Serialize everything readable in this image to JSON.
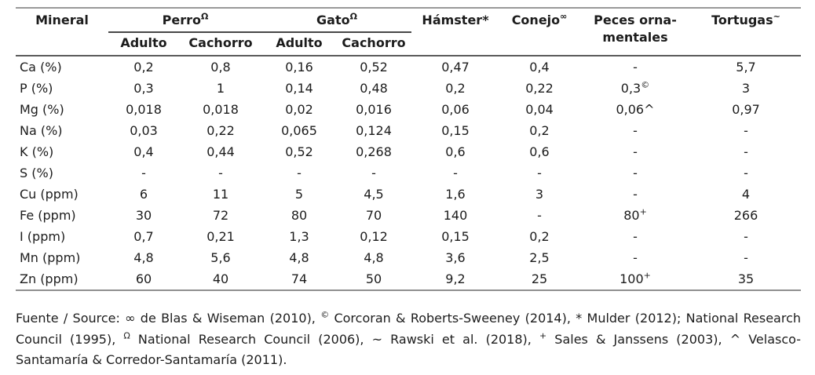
{
  "table": {
    "header": {
      "mineral": "Mineral",
      "groups": [
        {
          "label": "Perro",
          "sup": "Ω"
        },
        {
          "label": "Gato",
          "sup": "Ω"
        }
      ],
      "sub": [
        "Adulto",
        "Cachorro",
        "Adulto",
        "Cachorro"
      ],
      "singles": [
        {
          "label": "Hámster*",
          "sup": ""
        },
        {
          "label": "Conejo",
          "sup": "∞"
        },
        {
          "label": "Peces orna-\nmentales",
          "sup": ""
        },
        {
          "label": "Tortugas",
          "sup": "~"
        }
      ]
    },
    "rows": [
      {
        "mineral": "Ca (%)",
        "values": [
          "0,2",
          "0,8",
          "0,16",
          "0,52",
          "0,47",
          "0,4",
          "-",
          "5,7"
        ]
      },
      {
        "mineral": "P (%)",
        "values": [
          "0,3",
          "1",
          "0,14",
          "0,48",
          "0,2",
          "0,22",
          {
            "v": "0,3",
            "sup": "©"
          },
          "3"
        ]
      },
      {
        "mineral": "Mg (%)",
        "values": [
          "0,018",
          "0,018",
          "0,02",
          "0,016",
          "0,06",
          "0,04",
          "0,06^",
          "0,97"
        ]
      },
      {
        "mineral": "Na (%)",
        "values": [
          "0,03",
          "0,22",
          "0,065",
          "0,124",
          "0,15",
          "0,2",
          "-",
          "-"
        ]
      },
      {
        "mineral": "K (%)",
        "values": [
          "0,4",
          "0,44",
          "0,52",
          "0,268",
          "0,6",
          "0,6",
          "-",
          "-"
        ]
      },
      {
        "mineral": "S (%)",
        "values": [
          "-",
          "-",
          "-",
          "-",
          "-",
          "-",
          "-",
          "-"
        ]
      },
      {
        "mineral": "Cu (ppm)",
        "values": [
          "6",
          "11",
          "5",
          "4,5",
          "1,6",
          "3",
          "-",
          "4"
        ]
      },
      {
        "mineral": "Fe (ppm)",
        "values": [
          "30",
          "72",
          "80",
          "70",
          "140",
          "-",
          {
            "v": "80",
            "sup": "+"
          },
          "266"
        ]
      },
      {
        "mineral": "I (ppm)",
        "values": [
          "0,7",
          "0,21",
          "1,3",
          "0,12",
          "0,15",
          "0,2",
          "-",
          "-"
        ]
      },
      {
        "mineral": "Mn (ppm)",
        "values": [
          "4,8",
          "5,6",
          "4,8",
          "4,8",
          "3,6",
          "2,5",
          "-",
          "-"
        ]
      },
      {
        "mineral": "Zn (ppm)",
        "values": [
          "60",
          "40",
          "74",
          "50",
          "9,2",
          "25",
          {
            "v": "100",
            "sup": "+"
          },
          "35"
        ]
      }
    ]
  },
  "footer": {
    "segments": [
      {
        "t": "Fuente / Source: ∞ de Blas & Wiseman (2010), ",
        "sup": false
      },
      {
        "t": "©",
        "sup": true
      },
      {
        "t": " Corcoran & Roberts-Sweeney (2014), * Mulder (2012); National Research Council (1995), ",
        "sup": false
      },
      {
        "t": "Ω",
        "sup": true
      },
      {
        "t": " National Research Council (2006), ~ Rawski et al. (2018), ",
        "sup": false
      },
      {
        "t": "+",
        "sup": true
      },
      {
        "t": " Sales & Janssens (2003), ^ Velasco-Santamaría & Corredor-Santamaría (2011).",
        "sup": false
      }
    ]
  }
}
